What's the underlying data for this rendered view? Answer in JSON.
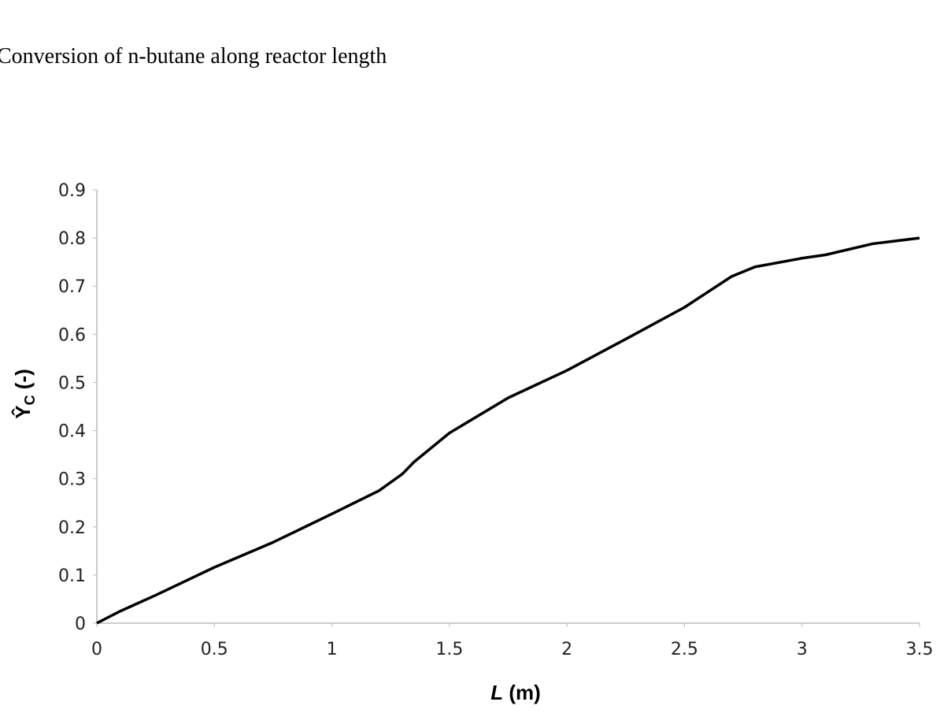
{
  "chart_data": {
    "type": "line",
    "caption": "Conversion of n-butane along reactor length",
    "xlabel": {
      "symbol": "L",
      "unit": " (m)"
    },
    "ylabel": {
      "symbol": "Ŷ",
      "subscript": "C",
      "unit": " (-)"
    },
    "x": [
      0,
      0.1,
      0.25,
      0.5,
      0.75,
      1,
      1.2,
      1.3,
      1.35,
      1.5,
      1.75,
      2,
      2.25,
      2.5,
      2.7,
      2.8,
      3,
      3.1,
      3.3,
      3.5
    ],
    "series": [
      {
        "color": "#000000",
        "values": [
          0,
          0.025,
          0.058,
          0.116,
          0.168,
          0.227,
          0.275,
          0.31,
          0.335,
          0.395,
          0.468,
          0.525,
          0.59,
          0.656,
          0.72,
          0.74,
          0.758,
          0.765,
          0.788,
          0.8
        ]
      }
    ],
    "xlim": [
      0,
      3.5
    ],
    "xticks": [
      0,
      0.5,
      1,
      1.5,
      2,
      2.5,
      3,
      3.5
    ],
    "ylim": [
      0,
      0.9
    ],
    "yticks": [
      0,
      0.1,
      0.2,
      0.3,
      0.4,
      0.5,
      0.6,
      0.7,
      0.8,
      0.9
    ],
    "grid": false
  }
}
